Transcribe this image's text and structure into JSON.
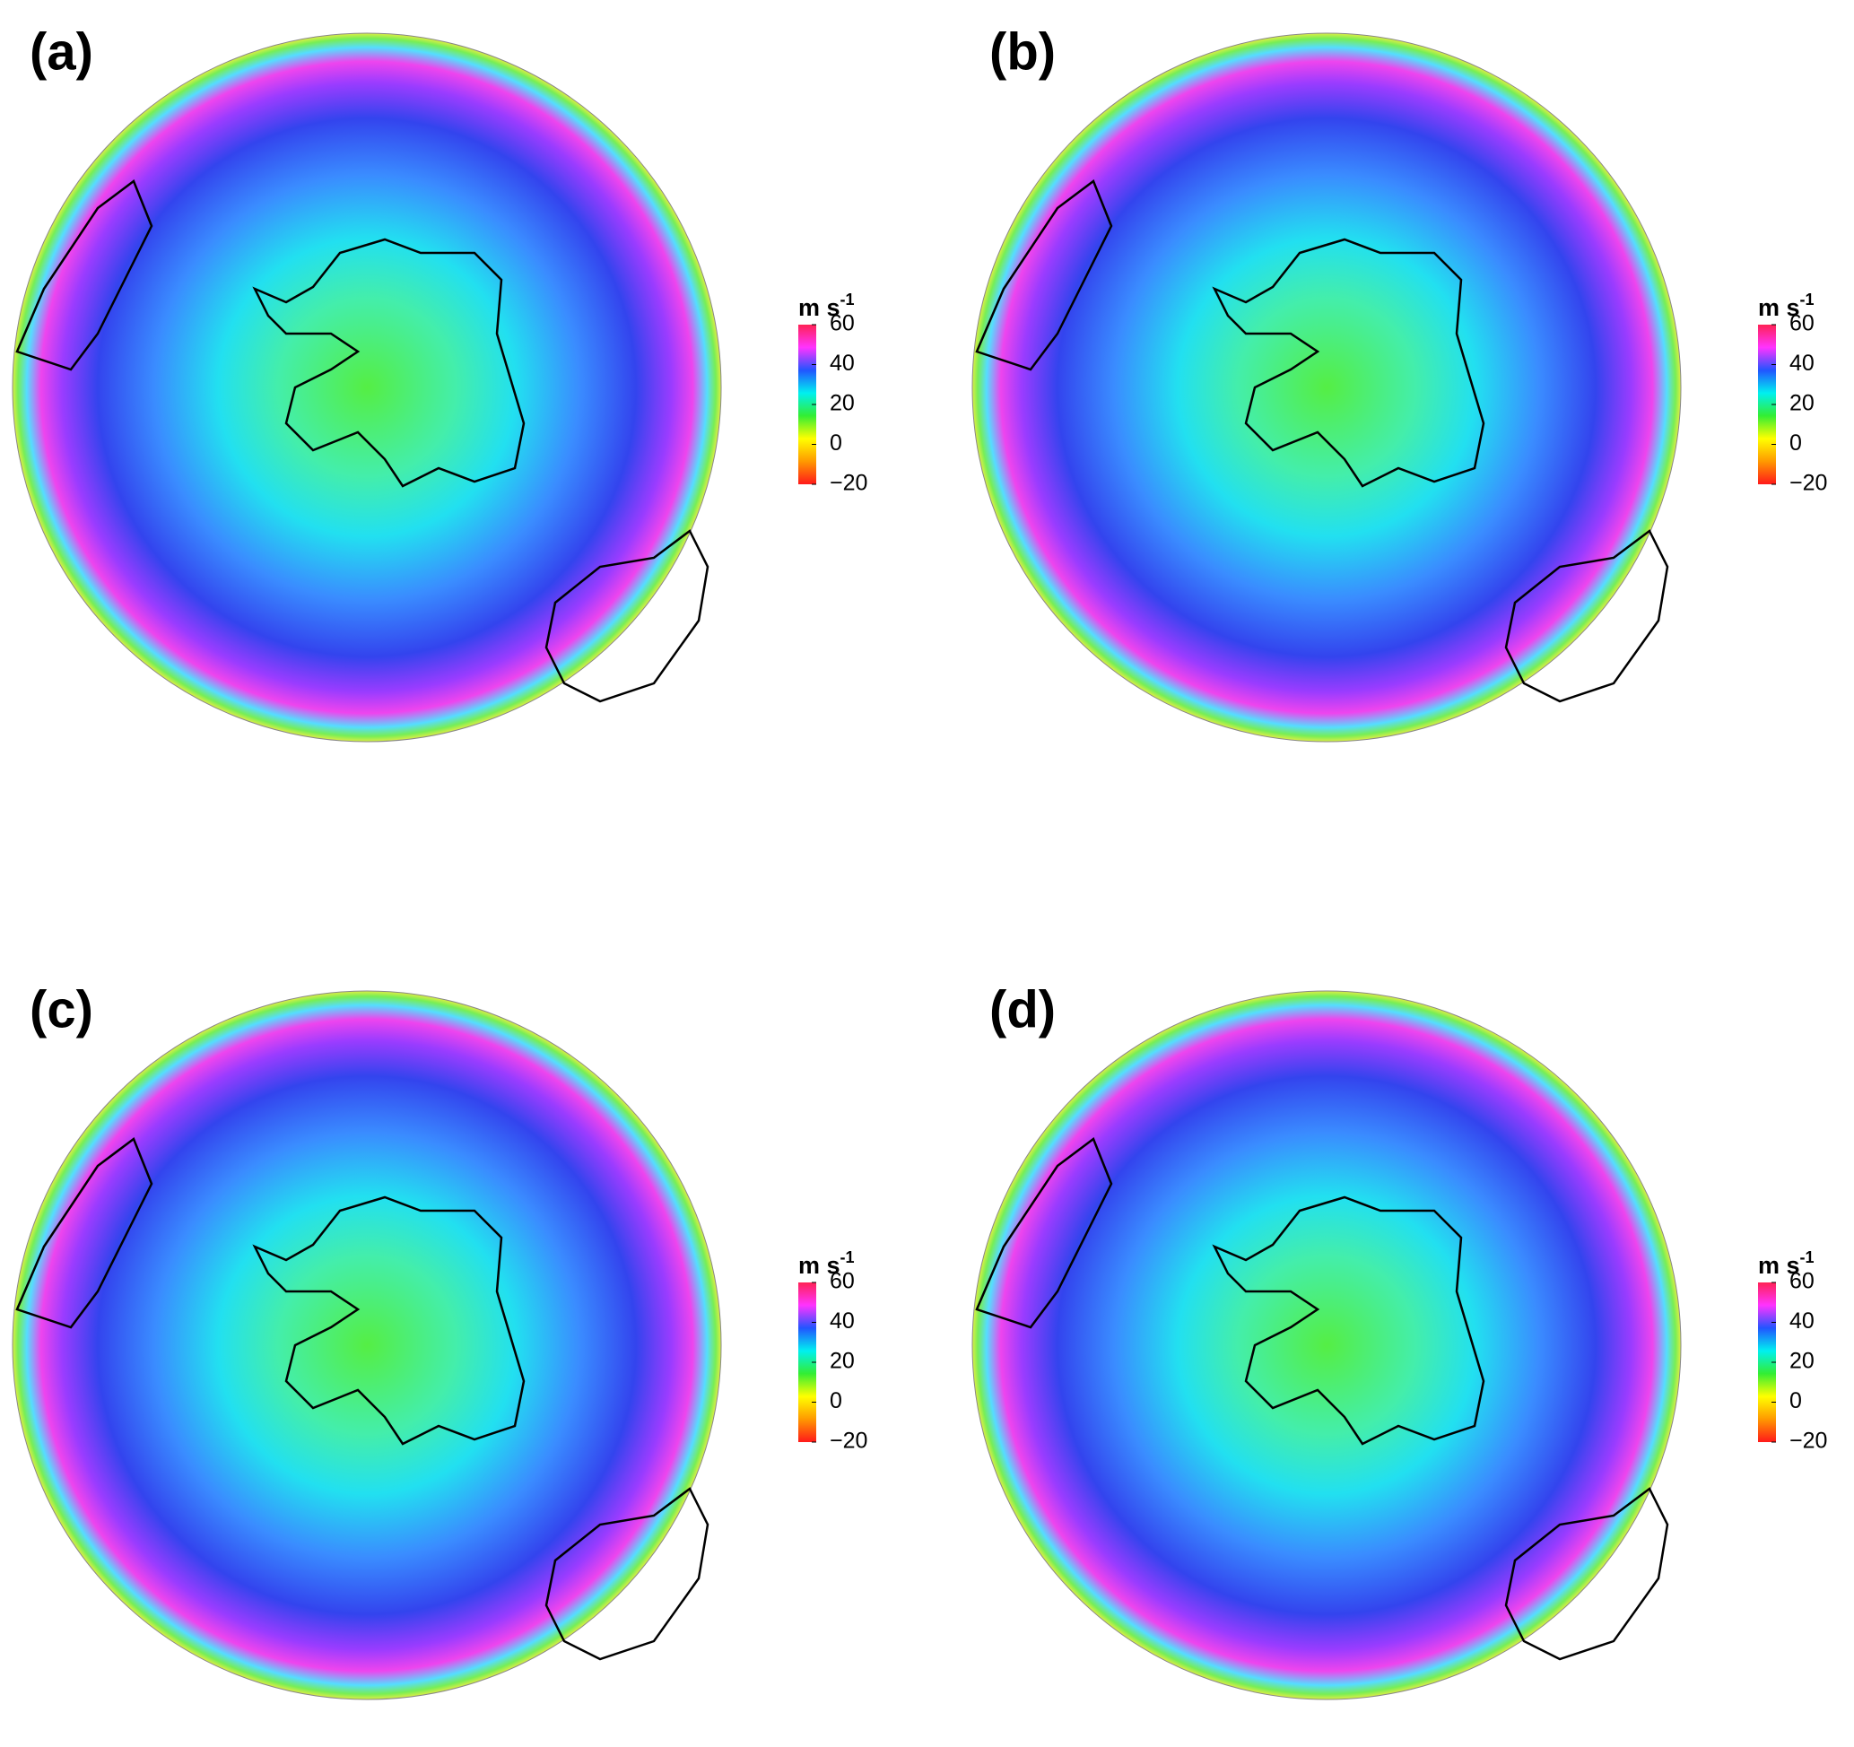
{
  "panels": [
    {
      "label": "(a)"
    },
    {
      "label": "(b)"
    },
    {
      "label": "(c)"
    },
    {
      "label": "(d)"
    }
  ],
  "colorbar": {
    "unit": "m s",
    "unit_exponent": "-1",
    "lim": [
      -20,
      60
    ],
    "ticks": [
      60,
      40,
      20,
      0,
      {
        "value": -20,
        "label": "−20"
      }
    ],
    "colors": [
      "#ff1a1a",
      "#ff9900",
      "#ffff00",
      "#33ee33",
      "#00f0f0",
      "#2255ff",
      "#ff33ff",
      "#ff2255"
    ]
  }
}
